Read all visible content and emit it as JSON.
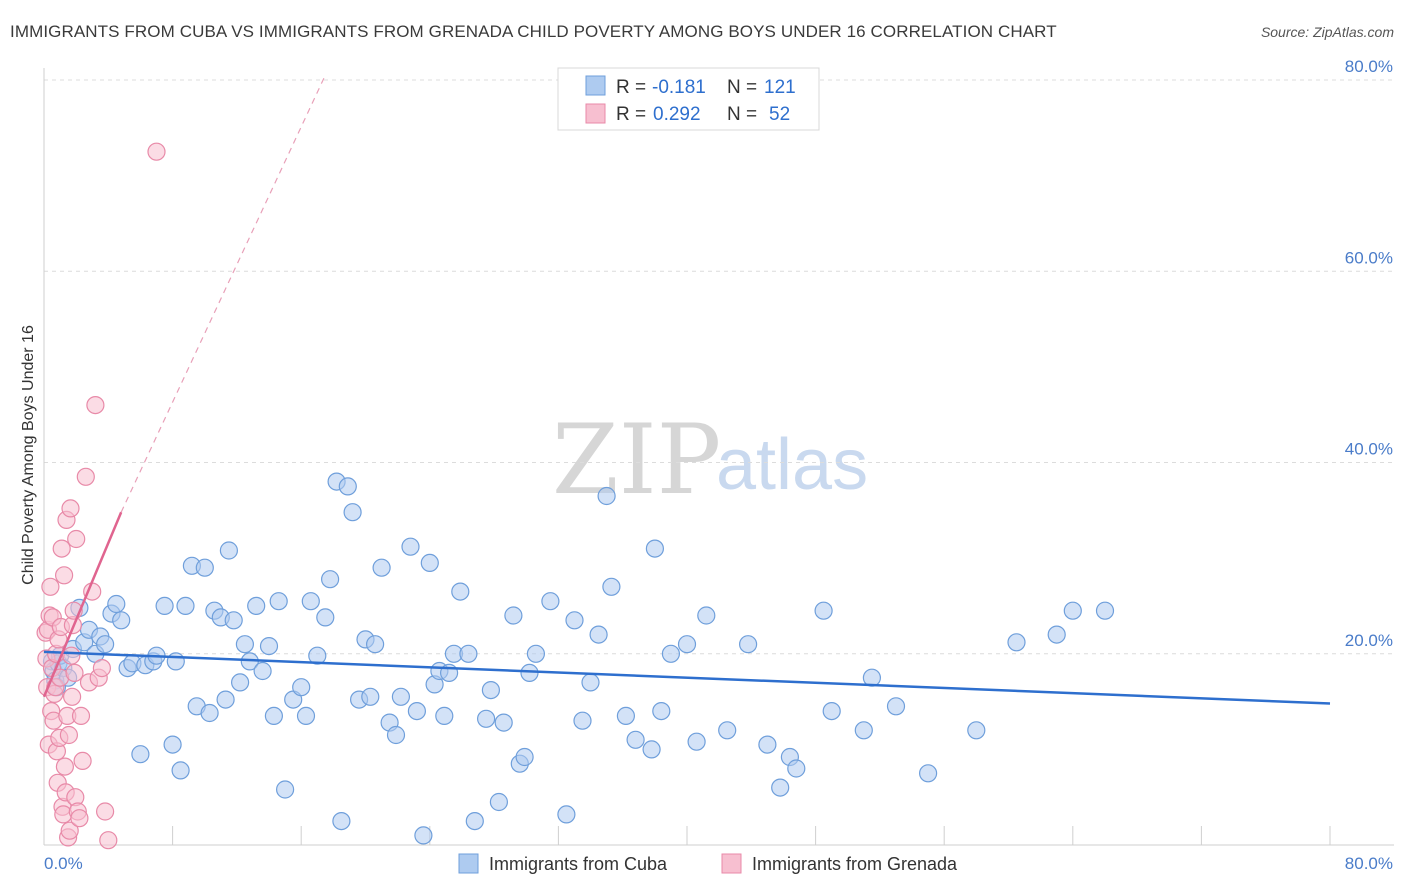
{
  "title": "IMMIGRANTS FROM CUBA VS IMMIGRANTS FROM GRENADA CHILD POVERTY AMONG BOYS UNDER 16 CORRELATION CHART",
  "source": "Source: ZipAtlas.com",
  "watermark": {
    "zip": "ZIP",
    "atlas": "atlas"
  },
  "legend": {
    "r_label": "R =",
    "n_label": "N =",
    "cuba": {
      "r": "-0.181",
      "n": "121"
    },
    "grenada": {
      "r": "0.292",
      "n": "52"
    }
  },
  "bottom_legend": {
    "cuba": "Immigrants from Cuba",
    "grenada": "Immigrants from Grenada"
  },
  "colors": {
    "cuba_fill": "#aecbf0",
    "cuba_stroke": "#6f9fdb",
    "cuba_line": "#2e6fce",
    "grenada_fill": "#f7bfd0",
    "grenada_stroke": "#e88aa8",
    "grenada_line": "#e0648f",
    "tick_text": "#4a7cc9",
    "grid": "#dcdcdc"
  },
  "chart_data": {
    "type": "scatter",
    "title": "IMMIGRANTS FROM CUBA VS IMMIGRANTS FROM GRENADA CHILD POVERTY AMONG BOYS UNDER 16 CORRELATION CHART",
    "xlabel": "",
    "ylabel": "Child Poverty Among Boys Under 16",
    "xlim": [
      0,
      80
    ],
    "ylim": [
      0,
      80
    ],
    "x_tick_labels": [
      "0.0%",
      "80.0%"
    ],
    "y_ticks": [
      20,
      40,
      60,
      80
    ],
    "y_tick_labels": [
      "20.0%",
      "40.0%",
      "60.0%",
      "80.0%"
    ],
    "grid": true,
    "series": [
      {
        "name": "Immigrants from Cuba",
        "r": -0.181,
        "n": 121,
        "trend": {
          "x": [
            0,
            80
          ],
          "y": [
            20.2,
            14.8
          ],
          "dashed": false
        },
        "points": [
          [
            0.5,
            19.2
          ],
          [
            0.6,
            18.2
          ],
          [
            0.7,
            17.2
          ],
          [
            0.8,
            16.5
          ],
          [
            0.9,
            19.0
          ],
          [
            1.0,
            19.8
          ],
          [
            1.2,
            18.5
          ],
          [
            1.5,
            17.5
          ],
          [
            1.8,
            20.5
          ],
          [
            2.2,
            24.8
          ],
          [
            2.5,
            21.2
          ],
          [
            2.8,
            22.5
          ],
          [
            3.2,
            20.0
          ],
          [
            3.5,
            21.8
          ],
          [
            3.8,
            21.0
          ],
          [
            4.2,
            24.2
          ],
          [
            4.5,
            25.2
          ],
          [
            4.8,
            23.5
          ],
          [
            5.2,
            18.5
          ],
          [
            5.5,
            19.0
          ],
          [
            6.0,
            9.5
          ],
          [
            6.3,
            18.8
          ],
          [
            6.8,
            19.2
          ],
          [
            7.0,
            19.8
          ],
          [
            7.5,
            25.0
          ],
          [
            8.0,
            10.5
          ],
          [
            8.2,
            19.2
          ],
          [
            8.5,
            7.8
          ],
          [
            8.8,
            25.0
          ],
          [
            9.2,
            29.2
          ],
          [
            9.5,
            14.5
          ],
          [
            10.0,
            29.0
          ],
          [
            10.3,
            13.8
          ],
          [
            10.6,
            24.5
          ],
          [
            11.0,
            23.8
          ],
          [
            11.3,
            15.2
          ],
          [
            11.5,
            30.8
          ],
          [
            11.8,
            23.5
          ],
          [
            12.2,
            17.0
          ],
          [
            12.5,
            21.0
          ],
          [
            12.8,
            19.2
          ],
          [
            13.2,
            25.0
          ],
          [
            13.6,
            18.2
          ],
          [
            14.0,
            20.8
          ],
          [
            14.3,
            13.5
          ],
          [
            14.6,
            25.5
          ],
          [
            15.0,
            5.8
          ],
          [
            15.5,
            15.2
          ],
          [
            16.0,
            16.5
          ],
          [
            16.3,
            13.5
          ],
          [
            16.6,
            25.5
          ],
          [
            17.0,
            19.8
          ],
          [
            17.5,
            23.8
          ],
          [
            17.8,
            27.8
          ],
          [
            18.2,
            38.0
          ],
          [
            18.5,
            2.5
          ],
          [
            18.9,
            37.5
          ],
          [
            19.2,
            34.8
          ],
          [
            19.6,
            15.2
          ],
          [
            20.0,
            21.5
          ],
          [
            20.3,
            15.5
          ],
          [
            20.6,
            21.0
          ],
          [
            21.0,
            29.0
          ],
          [
            21.5,
            12.8
          ],
          [
            21.9,
            11.5
          ],
          [
            22.2,
            15.5
          ],
          [
            22.8,
            31.2
          ],
          [
            23.2,
            14.0
          ],
          [
            23.6,
            1.0
          ],
          [
            24.0,
            29.5
          ],
          [
            24.3,
            16.8
          ],
          [
            24.6,
            18.2
          ],
          [
            24.9,
            13.5
          ],
          [
            25.2,
            18.0
          ],
          [
            25.5,
            20.0
          ],
          [
            25.9,
            26.5
          ],
          [
            26.4,
            20.0
          ],
          [
            26.8,
            2.5
          ],
          [
            27.5,
            13.2
          ],
          [
            27.8,
            16.2
          ],
          [
            28.3,
            4.5
          ],
          [
            28.6,
            12.8
          ],
          [
            29.2,
            24.0
          ],
          [
            29.6,
            8.5
          ],
          [
            29.9,
            9.2
          ],
          [
            30.2,
            18.0
          ],
          [
            30.6,
            20.0
          ],
          [
            31.5,
            25.5
          ],
          [
            32.5,
            3.2
          ],
          [
            33.0,
            23.5
          ],
          [
            33.5,
            13.0
          ],
          [
            34.0,
            17.0
          ],
          [
            34.5,
            22.0
          ],
          [
            35.0,
            36.5
          ],
          [
            35.3,
            27.0
          ],
          [
            36.2,
            13.5
          ],
          [
            36.8,
            11.0
          ],
          [
            37.8,
            10.0
          ],
          [
            38.0,
            31.0
          ],
          [
            38.4,
            14.0
          ],
          [
            39.0,
            20.0
          ],
          [
            40.0,
            21.0
          ],
          [
            40.6,
            10.8
          ],
          [
            41.2,
            24.0
          ],
          [
            42.5,
            12.0
          ],
          [
            43.8,
            21.0
          ],
          [
            45.0,
            10.5
          ],
          [
            45.8,
            6.0
          ],
          [
            46.4,
            9.2
          ],
          [
            46.8,
            8.0
          ],
          [
            48.5,
            24.5
          ],
          [
            49.0,
            14.0
          ],
          [
            51.0,
            12.0
          ],
          [
            51.5,
            17.5
          ],
          [
            53.0,
            14.5
          ],
          [
            55.0,
            7.5
          ],
          [
            58.0,
            12.0
          ],
          [
            60.5,
            21.2
          ],
          [
            63.0,
            22.0
          ],
          [
            64.0,
            24.5
          ],
          [
            66.0,
            24.5
          ]
        ]
      },
      {
        "name": "Immigrants from Grenada",
        "r": 0.292,
        "n": 52,
        "trend": {
          "x": [
            0,
            4.8
          ],
          "y": [
            15.5,
            34.8
          ],
          "dashed": false
        },
        "trend_extension": {
          "x": [
            4.8,
            17.5
          ],
          "y": [
            34.8,
            80.5
          ],
          "dashed": true
        },
        "points": [
          [
            0.1,
            22.2
          ],
          [
            0.15,
            19.5
          ],
          [
            0.2,
            16.5
          ],
          [
            0.25,
            22.5
          ],
          [
            0.3,
            10.5
          ],
          [
            0.35,
            24.0
          ],
          [
            0.4,
            27.0
          ],
          [
            0.45,
            14.0
          ],
          [
            0.5,
            18.5
          ],
          [
            0.55,
            23.8
          ],
          [
            0.6,
            13.0
          ],
          [
            0.65,
            15.8
          ],
          [
            0.7,
            16.5
          ],
          [
            0.75,
            20.0
          ],
          [
            0.8,
            9.8
          ],
          [
            0.85,
            6.5
          ],
          [
            0.9,
            21.5
          ],
          [
            0.95,
            11.2
          ],
          [
            1.0,
            17.5
          ],
          [
            1.05,
            22.8
          ],
          [
            1.1,
            31.0
          ],
          [
            1.15,
            4.0
          ],
          [
            1.2,
            3.2
          ],
          [
            1.25,
            28.2
          ],
          [
            1.3,
            8.2
          ],
          [
            1.35,
            5.5
          ],
          [
            1.4,
            34.0
          ],
          [
            1.45,
            13.5
          ],
          [
            1.5,
            0.8
          ],
          [
            1.55,
            11.5
          ],
          [
            1.6,
            1.5
          ],
          [
            1.65,
            35.2
          ],
          [
            1.7,
            19.8
          ],
          [
            1.75,
            15.5
          ],
          [
            1.8,
            23.0
          ],
          [
            1.85,
            24.5
          ],
          [
            1.9,
            18.0
          ],
          [
            1.95,
            5.0
          ],
          [
            2.0,
            32.0
          ],
          [
            2.1,
            3.5
          ],
          [
            2.2,
            2.8
          ],
          [
            2.3,
            13.5
          ],
          [
            2.4,
            8.8
          ],
          [
            2.6,
            38.5
          ],
          [
            2.8,
            17.0
          ],
          [
            3.0,
            26.5
          ],
          [
            3.2,
            46.0
          ],
          [
            3.4,
            17.5
          ],
          [
            3.6,
            18.5
          ],
          [
            3.8,
            3.5
          ],
          [
            4.0,
            0.5
          ],
          [
            7.0,
            72.5
          ]
        ]
      }
    ]
  }
}
